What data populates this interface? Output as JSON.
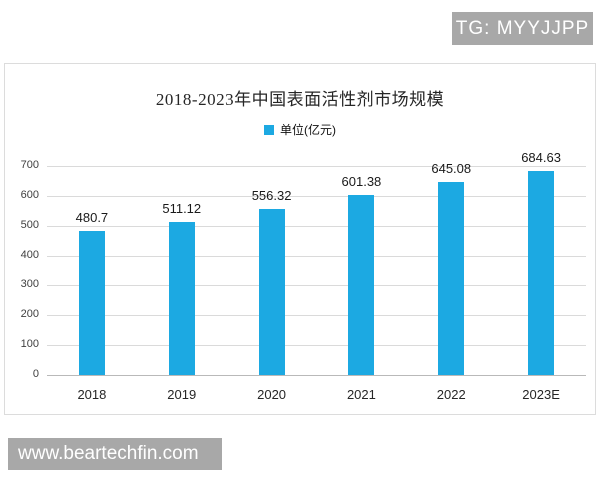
{
  "watermarks": {
    "top": {
      "text": "TG: MYYJJPP"
    },
    "bottom": {
      "text": "www.beartechfin.com"
    }
  },
  "colors": {
    "bar": "#1CA9E2",
    "watermark_bg": "#a8a8a8",
    "gridline": "#dadada"
  },
  "chart_data": {
    "type": "bar",
    "title": "2018-2023年中国表面活性剂市场规模",
    "legend": {
      "label": "单位(亿元)",
      "position": "top-center"
    },
    "categories": [
      "2018",
      "2019",
      "2020",
      "2021",
      "2022",
      "2023E"
    ],
    "values": [
      480.7,
      511.12,
      556.32,
      601.38,
      645.08,
      684.63
    ],
    "value_labels": [
      "480.7",
      "511.12",
      "556.32",
      "601.38",
      "645.08",
      "684.63"
    ],
    "yticks": [
      0,
      100,
      200,
      300,
      400,
      500,
      600,
      700
    ],
    "ylim": [
      0,
      700
    ],
    "grid": true,
    "xlabel": "",
    "ylabel": ""
  }
}
